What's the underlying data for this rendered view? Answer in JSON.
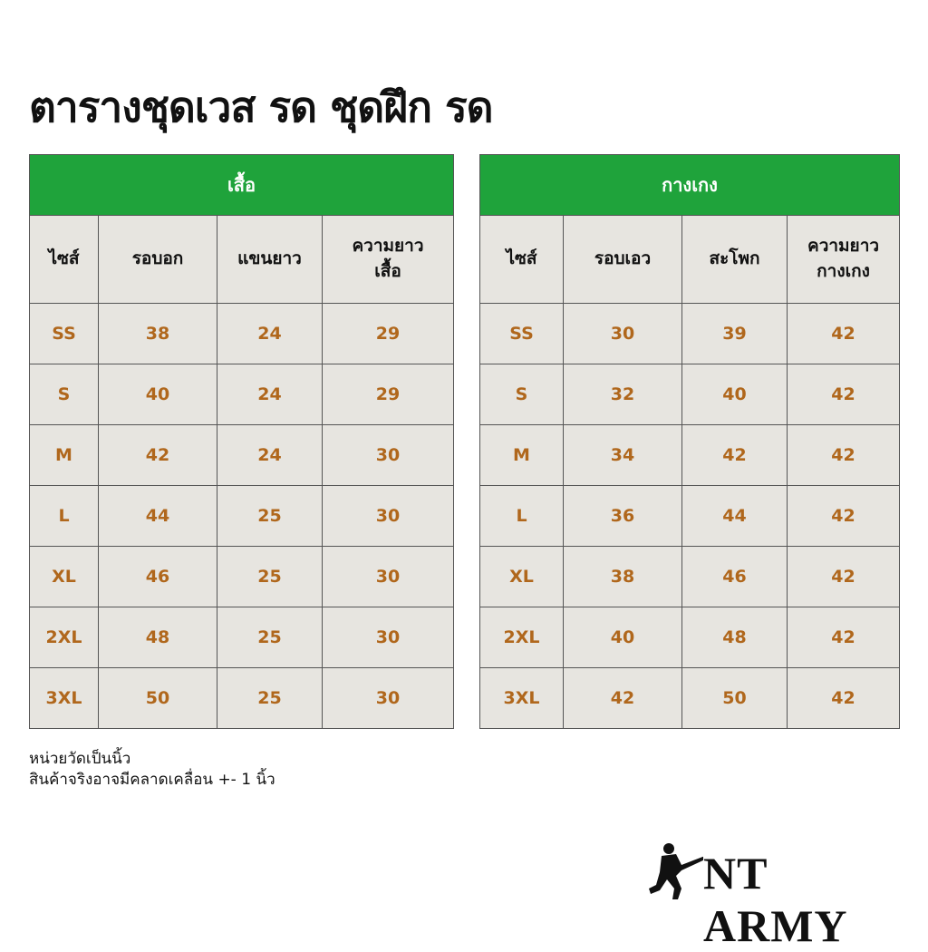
{
  "title": "ตารางชุดเวส รด ชุดฝึก รด",
  "tables": [
    {
      "title": "เสื้อ",
      "columns": [
        "ไซส์",
        "รอบอก",
        "แขนยาว",
        "ความยาว\nเสื้อ"
      ],
      "rows": [
        [
          "SS",
          38,
          24,
          29
        ],
        [
          "S",
          40,
          24,
          29
        ],
        [
          "M",
          42,
          24,
          30
        ],
        [
          "L",
          44,
          25,
          30
        ],
        [
          "XL",
          46,
          25,
          30
        ],
        [
          "2XL",
          48,
          25,
          30
        ],
        [
          "3XL",
          50,
          25,
          30
        ]
      ]
    },
    {
      "title": "กางเกง",
      "columns": [
        "ไซส์",
        "รอบเอว",
        "สะโพก",
        "ความยาว\nกางเกง"
      ],
      "rows": [
        [
          "SS",
          30,
          39,
          42
        ],
        [
          "S",
          32,
          40,
          42
        ],
        [
          "M",
          34,
          42,
          42
        ],
        [
          "L",
          36,
          44,
          42
        ],
        [
          "XL",
          38,
          46,
          42
        ],
        [
          "2XL",
          40,
          48,
          42
        ],
        [
          "3XL",
          42,
          50,
          42
        ]
      ]
    }
  ],
  "notes": [
    "หน่วยวัดเป็นนิ้ว",
    "สินค้าจริงอาจมีคลาดเคลื่อน +- 1 นิ้ว"
  ],
  "brand": "NT ARMY"
}
